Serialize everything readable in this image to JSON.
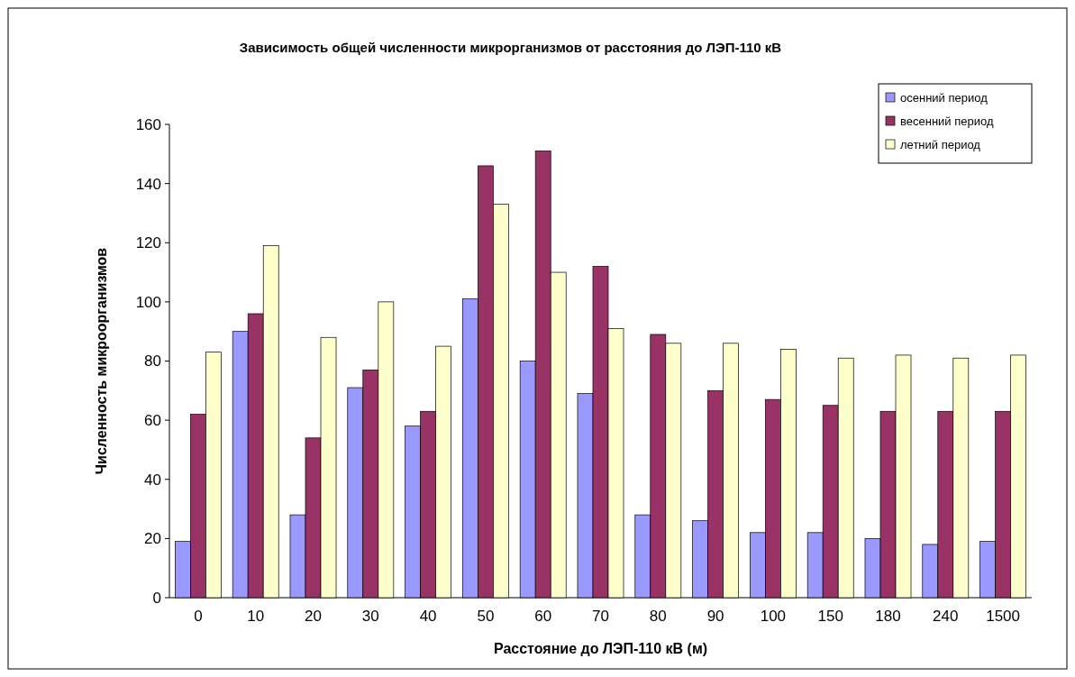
{
  "chart_data": {
    "type": "bar",
    "title": "Зависимость общей численности микрорганизмов от расстояния до ЛЭП-110 кВ",
    "xlabel": "Расстояние до ЛЭП-110 кВ (м)",
    "ylabel": "Численность микроорганизмов",
    "categories": [
      "0",
      "10",
      "20",
      "30",
      "40",
      "50",
      "60",
      "70",
      "80",
      "90",
      "100",
      "150",
      "180",
      "240",
      "1500"
    ],
    "series": [
      {
        "name": "осенний период",
        "color": "#9999ff",
        "values": [
          19,
          90,
          28,
          71,
          58,
          101,
          80,
          69,
          28,
          26,
          22,
          22,
          20,
          18,
          19
        ]
      },
      {
        "name": "весенний период",
        "color": "#993366",
        "values": [
          62,
          96,
          54,
          77,
          63,
          146,
          151,
          112,
          89,
          70,
          67,
          65,
          63,
          63,
          63
        ]
      },
      {
        "name": "летний период",
        "color": "#ffffcc",
        "values": [
          83,
          119,
          88,
          100,
          85,
          133,
          110,
          91,
          86,
          86,
          84,
          81,
          82,
          81,
          82
        ]
      }
    ],
    "ylim": [
      0,
      160
    ],
    "yticks": [
      0,
      20,
      40,
      60,
      80,
      100,
      120,
      140,
      160
    ],
    "legend": "top right",
    "grid": false
  }
}
